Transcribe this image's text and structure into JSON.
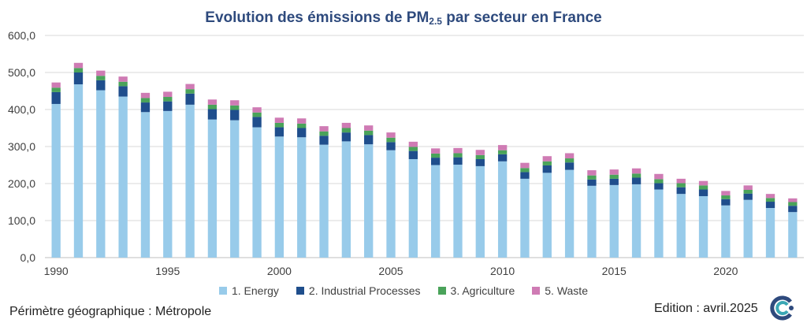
{
  "title": {
    "main": "Evolution des émissions de PM",
    "sub": "2.5",
    "rest": " par secteur en France"
  },
  "footer": {
    "perimeter": "Périmètre géographique : Métropole",
    "edition": "Edition : avril.2025"
  },
  "colors": {
    "energy": "#98cbea",
    "industrial": "#1f4e8c",
    "agriculture": "#4aa35a",
    "waste": "#cf7bb4",
    "axis_text": "#404040",
    "grid": "#d9d9d9"
  },
  "chart_data": {
    "type": "bar",
    "stacked": true,
    "title": "Evolution des émissions de PM2.5 par secteur en France",
    "categories": [
      1990,
      1991,
      1992,
      1993,
      1994,
      1995,
      1996,
      1997,
      1998,
      1999,
      2000,
      2001,
      2002,
      2003,
      2004,
      2005,
      2006,
      2007,
      2008,
      2009,
      2010,
      2011,
      2012,
      2013,
      2014,
      2015,
      2016,
      2017,
      2018,
      2019,
      2020,
      2021,
      2022,
      2023
    ],
    "x_tick_labels": [
      "1990",
      "1995",
      "2000",
      "2005",
      "2010",
      "2015",
      "2020"
    ],
    "y_tick_labels": [
      "0,0",
      "100,0",
      "200,0",
      "300,0",
      "400,0",
      "500,0",
      "600,0"
    ],
    "ylim": [
      0,
      600
    ],
    "grid": true,
    "legend_position": "bottom",
    "series": [
      {
        "name": "1. Energy",
        "key": "energy",
        "values": [
          415,
          468,
          452,
          435,
          393,
          396,
          413,
          373,
          371,
          352,
          327,
          325,
          305,
          314,
          306,
          290,
          266,
          250,
          251,
          247,
          260,
          213,
          229,
          237,
          194,
          196,
          198,
          184,
          172,
          166,
          141,
          156,
          134,
          123
        ]
      },
      {
        "name": "2.  Industrial Processes",
        "key": "industrial",
        "values": [
          32,
          32,
          27,
          28,
          26,
          26,
          30,
          28,
          28,
          28,
          25,
          25,
          24,
          24,
          25,
          22,
          22,
          20,
          20,
          19,
          19,
          18,
          20,
          20,
          17,
          17,
          18,
          17,
          18,
          18,
          17,
          17,
          17,
          17
        ]
      },
      {
        "name": "3.  Agriculture",
        "key": "agriculture",
        "values": [
          12,
          12,
          12,
          12,
          12,
          12,
          12,
          12,
          12,
          12,
          12,
          12,
          12,
          12,
          12,
          12,
          11,
          11,
          11,
          11,
          11,
          11,
          11,
          11,
          11,
          11,
          11,
          11,
          11,
          11,
          10,
          10,
          10,
          10
        ]
      },
      {
        "name": "5.  Waste",
        "key": "waste",
        "values": [
          14,
          14,
          14,
          14,
          14,
          14,
          14,
          14,
          14,
          14,
          14,
          14,
          14,
          14,
          14,
          14,
          14,
          14,
          14,
          14,
          14,
          14,
          14,
          14,
          14,
          14,
          14,
          14,
          12,
          12,
          12,
          12,
          11,
          10
        ]
      }
    ]
  }
}
